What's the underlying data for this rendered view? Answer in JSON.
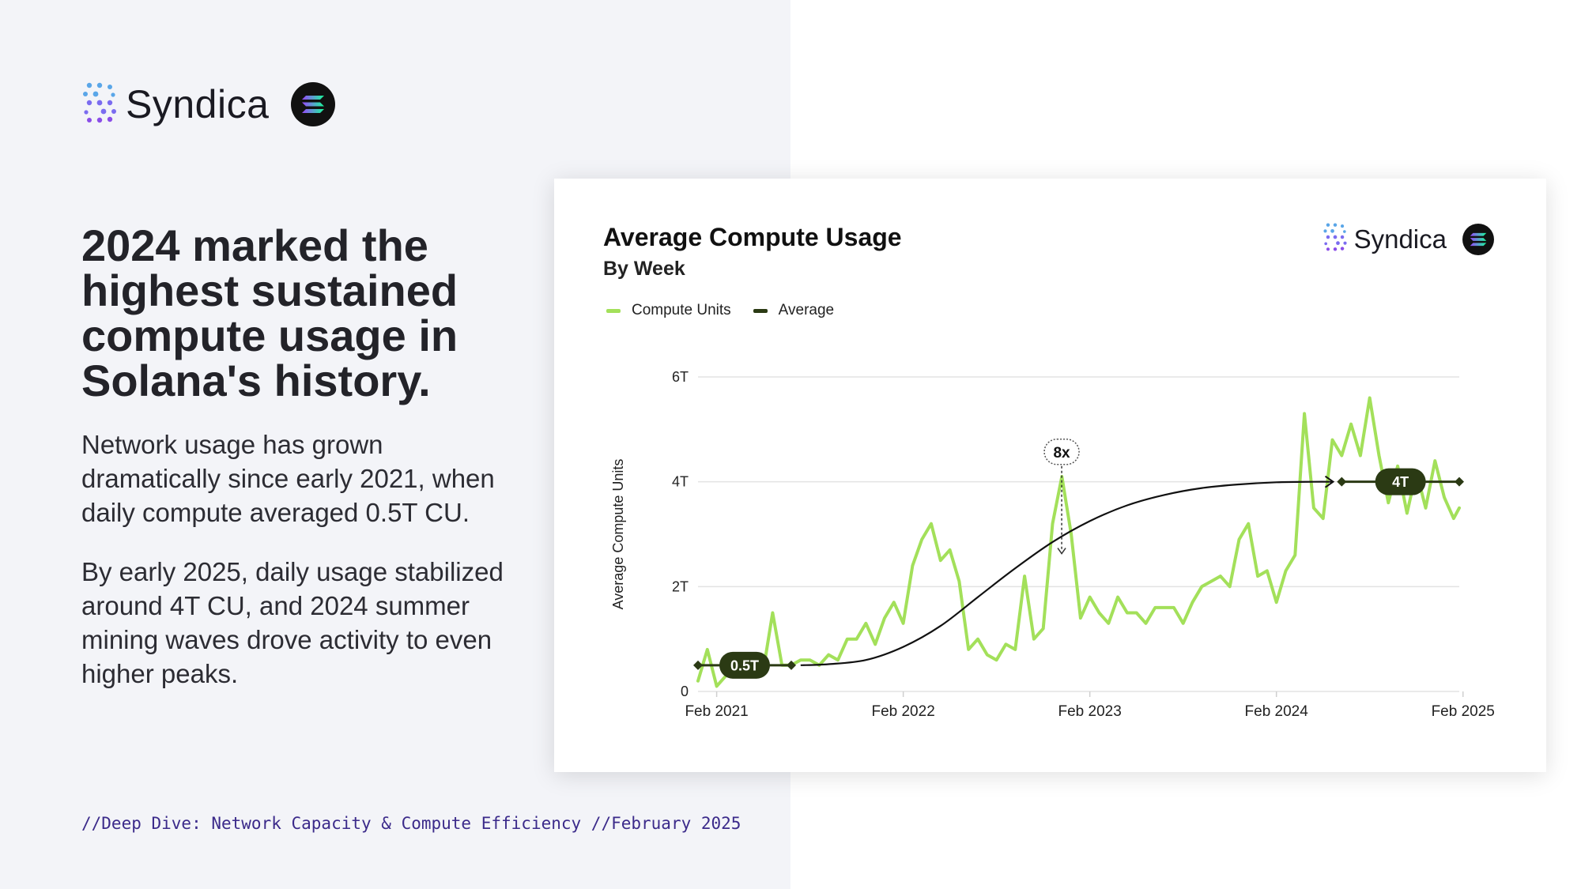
{
  "brand": {
    "name": "Syndica",
    "icon": "syndica-logo-icon",
    "partner_icon": "solana-logo-icon"
  },
  "headline": "2024 marked the highest sustained compute usage in Solana's history.",
  "paragraph_1": "Network usage has grown dramatically since early 2021, when daily compute averaged 0.5T CU.",
  "paragraph_2": "By early 2025, daily usage stabilized around 4T CU, and 2024 summer mining waves drove activity to even higher peaks.",
  "footer": "//Deep Dive: Network Capacity & Compute Efficiency //February 2025",
  "colors": {
    "compute_units": "#a3e05a",
    "average": "#2b3a14",
    "accent": "#3b2a8a"
  },
  "chart_data": {
    "type": "line",
    "title": "Average Compute Usage",
    "subtitle": "By Week",
    "ylabel": "Average Compute Units",
    "xlabel": "",
    "ylim": [
      0,
      6
    ],
    "yticks": [
      0,
      2,
      4,
      6
    ],
    "ytick_labels": [
      "0",
      "2T",
      "4T",
      "6T"
    ],
    "xlim": [
      2021.0,
      2025.08
    ],
    "xticks": [
      2021.1,
      2022.1,
      2023.1,
      2024.1,
      2025.1
    ],
    "xtick_labels": [
      "Feb 2021",
      "Feb 2022",
      "Feb 2023",
      "Feb 2024",
      "Feb 2025"
    ],
    "grid": true,
    "legend_position": "top-left",
    "series": [
      {
        "name": "Compute Units",
        "color": "#a3e05a",
        "x": [
          2021.0,
          2021.05,
          2021.1,
          2021.15,
          2021.2,
          2021.25,
          2021.3,
          2021.35,
          2021.4,
          2021.45,
          2021.5,
          2021.55,
          2021.6,
          2021.65,
          2021.7,
          2021.75,
          2021.8,
          2021.85,
          2021.9,
          2021.95,
          2022.0,
          2022.05,
          2022.1,
          2022.15,
          2022.2,
          2022.25,
          2022.3,
          2022.35,
          2022.4,
          2022.45,
          2022.5,
          2022.55,
          2022.6,
          2022.65,
          2022.7,
          2022.75,
          2022.8,
          2022.85,
          2022.9,
          2022.95,
          2023.0,
          2023.05,
          2023.1,
          2023.15,
          2023.2,
          2023.25,
          2023.3,
          2023.35,
          2023.4,
          2023.45,
          2023.5,
          2023.55,
          2023.6,
          2023.65,
          2023.7,
          2023.75,
          2023.8,
          2023.85,
          2023.9,
          2023.95,
          2024.0,
          2024.05,
          2024.1,
          2024.15,
          2024.2,
          2024.25,
          2024.3,
          2024.35,
          2024.4,
          2024.45,
          2024.5,
          2024.55,
          2024.6,
          2024.65,
          2024.7,
          2024.75,
          2024.8,
          2024.85,
          2024.9,
          2024.95,
          2025.0,
          2025.05,
          2025.08
        ],
        "values": [
          0.2,
          0.8,
          0.1,
          0.3,
          0.6,
          0.3,
          0.5,
          0.4,
          1.5,
          0.5,
          0.5,
          0.6,
          0.6,
          0.5,
          0.7,
          0.6,
          1.0,
          1.0,
          1.3,
          0.9,
          1.4,
          1.7,
          1.3,
          2.4,
          2.9,
          3.2,
          2.5,
          2.7,
          2.1,
          0.8,
          1.0,
          0.7,
          0.6,
          0.9,
          0.8,
          2.2,
          1.0,
          1.2,
          3.2,
          4.1,
          3.0,
          1.4,
          1.8,
          1.5,
          1.3,
          1.8,
          1.5,
          1.5,
          1.3,
          1.6,
          1.6,
          1.6,
          1.3,
          1.7,
          2.0,
          2.1,
          2.2,
          2.0,
          2.9,
          3.2,
          2.2,
          2.3,
          1.7,
          2.3,
          2.6,
          5.3,
          3.5,
          3.3,
          4.8,
          4.5,
          5.1,
          4.5,
          5.6,
          4.5,
          3.6,
          4.3,
          3.4,
          4.2,
          3.5,
          4.4,
          3.7,
          3.3,
          3.5
        ]
      },
      {
        "name": "Average",
        "color": "#111111",
        "x": [
          2021.55,
          2021.7,
          2021.9,
          2022.1,
          2022.3,
          2022.5,
          2022.7,
          2022.9,
          2023.1,
          2023.3,
          2023.5,
          2023.7,
          2023.9,
          2024.1,
          2024.3,
          2024.4
        ],
        "values": [
          0.5,
          0.52,
          0.6,
          0.85,
          1.25,
          1.8,
          2.35,
          2.85,
          3.25,
          3.55,
          3.75,
          3.88,
          3.95,
          3.99,
          4.0,
          4.0
        ]
      }
    ],
    "annotations": [
      {
        "label": "0.5T",
        "x_start": 2021.0,
        "x_end": 2021.5,
        "y": 0.5
      },
      {
        "label": "4T",
        "x_start": 2024.45,
        "x_end": 2025.08,
        "y": 4.0
      },
      {
        "label": "8x",
        "x": 2023.0,
        "y_from": 4.3,
        "y_to": 2.6
      }
    ]
  }
}
